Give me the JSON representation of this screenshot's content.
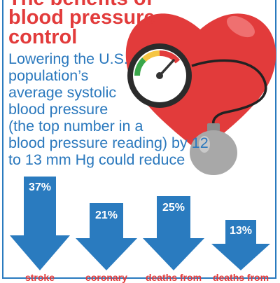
{
  "headline": {
    "line0": "The benefits of",
    "line1": "blood pressure",
    "line2": "control"
  },
  "body": {
    "lines": [
      "Lowering the U.S.",
      "population’s",
      "average systolic",
      "blood pressure",
      "(the top number in a",
      "blood pressure reading) by 12",
      "to 13 mm Hg could reduce"
    ]
  },
  "stats": [
    {
      "percent": "37%",
      "value": 37,
      "caption": "stroke"
    },
    {
      "percent": "21%",
      "value": 21,
      "caption": "coronary"
    },
    {
      "percent": "25%",
      "value": 25,
      "caption": "deaths from"
    },
    {
      "percent": "13%",
      "value": 13,
      "caption": "deaths from"
    }
  ],
  "colors": {
    "headline": "#e23b3b",
    "body_text": "#2a78bd",
    "arrow_fill": "#2a7bbf",
    "heart": "#e23b3b",
    "gauge_face": "#ffffff",
    "bulb": "#a8a8a8"
  },
  "icons": {
    "heart": "heart-icon",
    "gauge": "blood-pressure-gauge-icon",
    "bulb": "inflation-bulb-icon",
    "arrow": "down-arrow-icon"
  }
}
